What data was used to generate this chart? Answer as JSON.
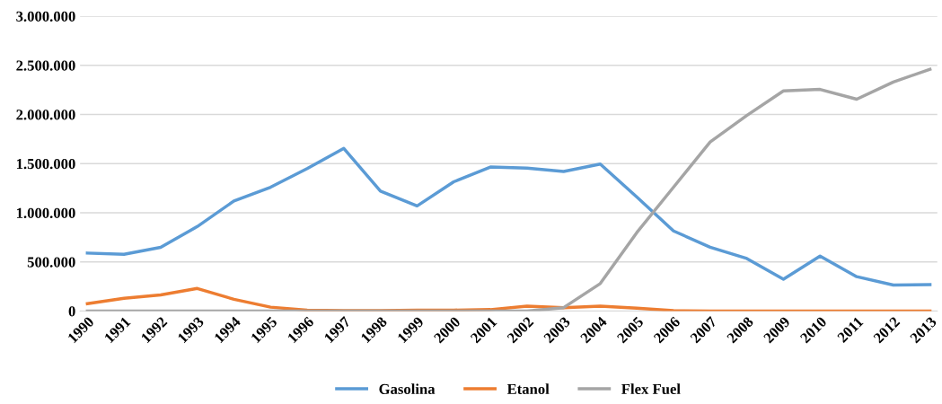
{
  "chart_data": {
    "type": "line",
    "categories": [
      "1990",
      "1991",
      "1992",
      "1993",
      "1994",
      "1995",
      "1996",
      "1997",
      "1998",
      "1999",
      "2000",
      "2001",
      "2002",
      "2003",
      "2004",
      "2005",
      "2006",
      "2007",
      "2008",
      "2009",
      "2010",
      "2011",
      "2012",
      "2013"
    ],
    "series": [
      {
        "name": "Gasolina",
        "color": "#5b9bd5",
        "values": [
          590000,
          578000,
          648000,
          860000,
          1120000,
          1260000,
          1450000,
          1655000,
          1220000,
          1070000,
          1315000,
          1465000,
          1455000,
          1420000,
          1495000,
          1160000,
          815000,
          650000,
          535000,
          325000,
          560000,
          350000,
          265000,
          270000
        ]
      },
      {
        "name": "Etanol",
        "color": "#ed7d31",
        "values": [
          75000,
          130000,
          165000,
          230000,
          120000,
          40000,
          10000,
          5000,
          5000,
          10000,
          10000,
          15000,
          50000,
          35000,
          50000,
          30000,
          5000,
          0,
          0,
          0,
          0,
          0,
          0,
          0
        ]
      },
      {
        "name": "Flex Fuel",
        "color": "#a5a5a5",
        "values": [
          0,
          0,
          0,
          0,
          0,
          0,
          0,
          0,
          0,
          0,
          0,
          0,
          0,
          35000,
          280000,
          800000,
          1260000,
          1720000,
          1990000,
          2240000,
          2255000,
          2155000,
          2330000,
          2460000
        ]
      }
    ],
    "ylim": [
      0,
      3000000
    ],
    "yticks": [
      {
        "value": 0,
        "label": "0"
      },
      {
        "value": 500000,
        "label": "500.000"
      },
      {
        "value": 1000000,
        "label": "1.000.000"
      },
      {
        "value": 1500000,
        "label": "1.500.000"
      },
      {
        "value": 2000000,
        "label": "2.000.000"
      },
      {
        "value": 2500000,
        "label": "2.500.000"
      },
      {
        "value": 3000000,
        "label": "3.000.000"
      }
    ],
    "grid": "y",
    "legend": "bottom",
    "marker": "none",
    "line_style": "solid"
  }
}
